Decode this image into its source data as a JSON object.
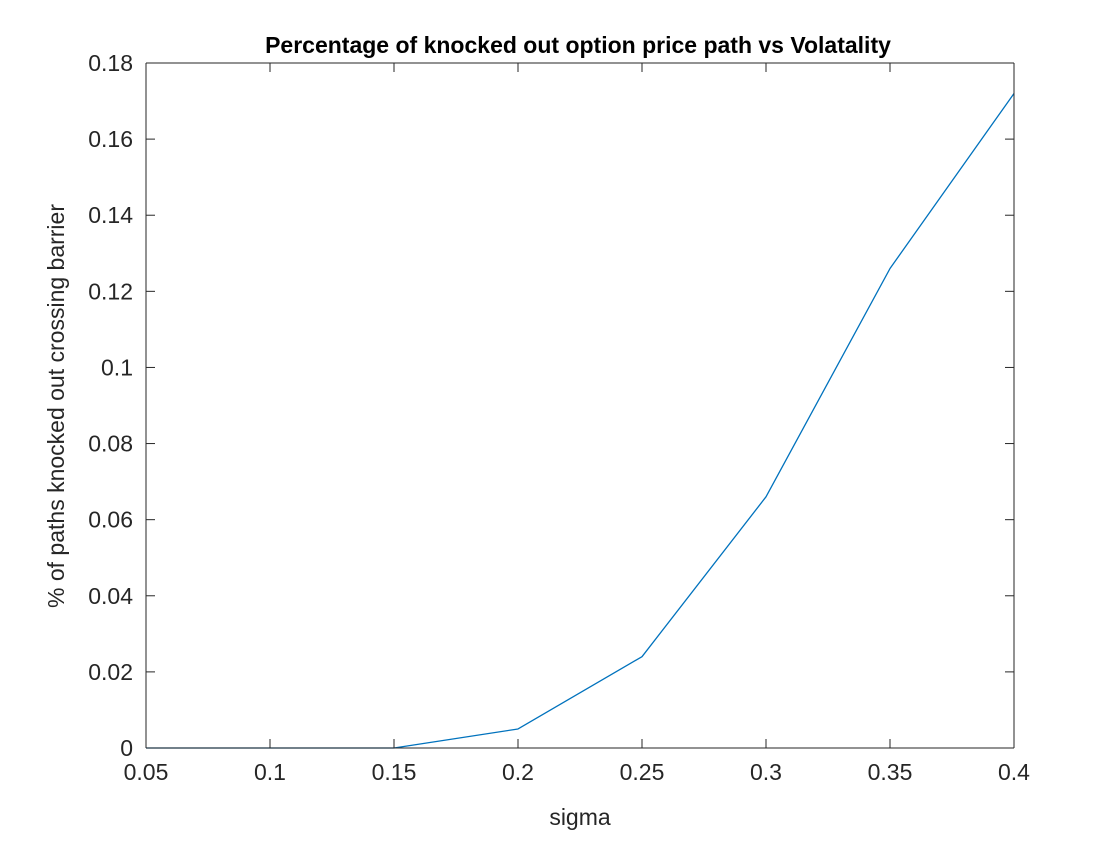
{
  "chart_data": {
    "type": "line",
    "title": "Percentage of knocked out option price path vs Volatality",
    "xlabel": "sigma",
    "ylabel": "% of paths knocked out crossing barrier",
    "xlim": [
      0.05,
      0.4
    ],
    "ylim": [
      0,
      0.18
    ],
    "x_ticks": [
      0.05,
      0.1,
      0.15,
      0.2,
      0.25,
      0.3,
      0.35,
      0.4
    ],
    "x_tick_labels": [
      "0.05",
      "0.1",
      "0.15",
      "0.2",
      "0.25",
      "0.3",
      "0.35",
      "0.4"
    ],
    "y_ticks": [
      0,
      0.02,
      0.04,
      0.06,
      0.08,
      0.1,
      0.12,
      0.14,
      0.16,
      0.18
    ],
    "y_tick_labels": [
      "0",
      "0.02",
      "0.04",
      "0.06",
      "0.08",
      "0.1",
      "0.12",
      "0.14",
      "0.16",
      "0.18"
    ],
    "grid": false,
    "series": [
      {
        "color": "#0072bd",
        "x": [
          0.05,
          0.1,
          0.15,
          0.2,
          0.25,
          0.3,
          0.35,
          0.4
        ],
        "y": [
          0,
          0,
          0,
          0.005,
          0.024,
          0.066,
          0.126,
          0.172
        ]
      }
    ]
  }
}
